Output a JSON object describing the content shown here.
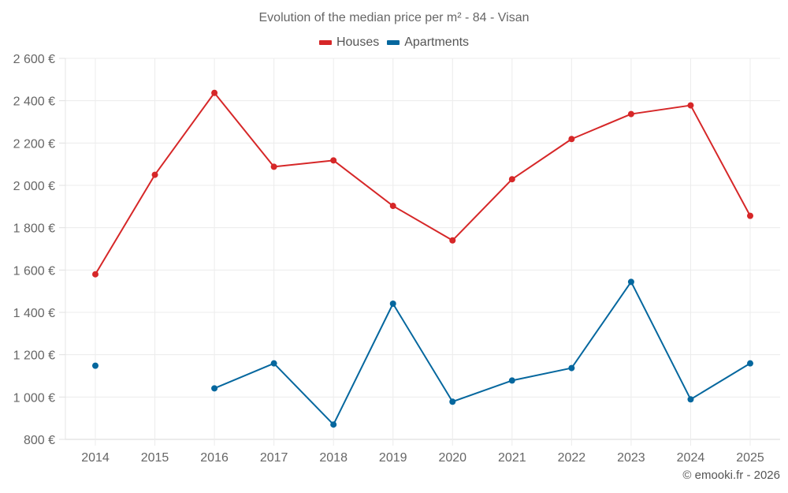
{
  "chart_data": {
    "type": "line",
    "title": "Evolution of the median price per m² - 84 - Visan",
    "xlabel": "",
    "ylabel": "",
    "x": [
      "2014",
      "2015",
      "2016",
      "2017",
      "2018",
      "2019",
      "2020",
      "2021",
      "2022",
      "2023",
      "2024",
      "2025"
    ],
    "ylim": [
      800,
      2600
    ],
    "yticks": [
      800,
      1000,
      1200,
      1400,
      1600,
      1800,
      2000,
      2200,
      2400,
      2600
    ],
    "ytick_labels": [
      "800 €",
      "1 000 €",
      "1 200 €",
      "1 400 €",
      "1 600 €",
      "1 800 €",
      "2 000 €",
      "2 200 €",
      "2 400 €",
      "2 600 €"
    ],
    "grid": true,
    "legend_position": "top-center",
    "series": [
      {
        "name": "Houses",
        "color": "#d62728",
        "values": [
          1580,
          2050,
          2437,
          2088,
          2118,
          1903,
          1740,
          2029,
          2219,
          2337,
          2378,
          1856
        ]
      },
      {
        "name": "Apartments",
        "color": "#05679e",
        "values": [
          1148,
          null,
          1041,
          1159,
          870,
          1441,
          978,
          1078,
          1137,
          1544,
          989,
          1159
        ]
      }
    ]
  },
  "credit": "© emooki.fr - 2026"
}
